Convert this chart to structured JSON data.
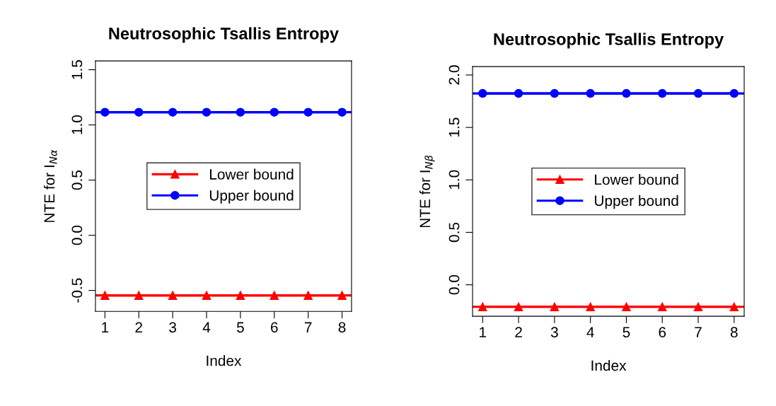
{
  "chart_data": [
    {
      "type": "line",
      "title": "Neutrosophic Tsallis Entropy",
      "xlabel": "Index",
      "ylabel": "NTE for I$_{Nα}$",
      "x": [
        1,
        2,
        3,
        4,
        5,
        6,
        7,
        8
      ],
      "xlim": [
        0.72,
        8.28
      ],
      "xticks": [
        1,
        2,
        3,
        4,
        5,
        6,
        7,
        8
      ],
      "ylim": [
        -0.69,
        1.58
      ],
      "yticks": [
        {
          "value": -0.5,
          "label": "-0.5"
        },
        {
          "value": 0,
          "label": "0.0"
        },
        {
          "value": 0.5,
          "label": "0.5"
        },
        {
          "value": 1,
          "label": "1.0"
        },
        {
          "value": 1.5,
          "label": "1.5"
        }
      ],
      "series": [
        {
          "name": "Lower bound",
          "color": "#ff0000",
          "marker": "triangle",
          "values": [
            -0.545,
            -0.545,
            -0.545,
            -0.545,
            -0.545,
            -0.545,
            -0.545,
            -0.545
          ]
        },
        {
          "name": "Upper bound",
          "color": "#0000ff",
          "marker": "circle",
          "values": [
            1.115,
            1.115,
            1.115,
            1.115,
            1.115,
            1.115,
            1.115,
            1.115
          ]
        }
      ],
      "ref_lines": [
        {
          "axis": "y",
          "value": -0.545,
          "color": "#ff0000"
        },
        {
          "axis": "y",
          "value": 1.115,
          "color": "#0000ff"
        }
      ],
      "legend": "center",
      "grid": false,
      "line_style": "solid"
    },
    {
      "type": "line",
      "title": "Neutrosophic Tsallis Entropy",
      "xlabel": "Index",
      "ylabel": "NTE for I$_{Nβ}$",
      "x": [
        1,
        2,
        3,
        4,
        5,
        6,
        7,
        8
      ],
      "xlim": [
        0.72,
        8.28
      ],
      "xticks": [
        1,
        2,
        3,
        4,
        5,
        6,
        7,
        8
      ],
      "ylim": [
        -0.3,
        2.08
      ],
      "yticks": [
        {
          "value": 0,
          "label": "0.0"
        },
        {
          "value": 0.5,
          "label": "0.5"
        },
        {
          "value": 1,
          "label": "1.0"
        },
        {
          "value": 1.5,
          "label": "1.5"
        },
        {
          "value": 2,
          "label": "2.0"
        }
      ],
      "series": [
        {
          "name": "Lower bound",
          "color": "#ff0000",
          "marker": "triangle",
          "values": [
            -0.21,
            -0.21,
            -0.21,
            -0.21,
            -0.21,
            -0.21,
            -0.21,
            -0.21
          ]
        },
        {
          "name": "Upper bound",
          "color": "#0000ff",
          "marker": "circle",
          "values": [
            1.824,
            1.824,
            1.824,
            1.824,
            1.824,
            1.824,
            1.824,
            1.824
          ]
        }
      ],
      "ref_lines": [
        {
          "axis": "y",
          "value": -0.21,
          "color": "#ff0000"
        },
        {
          "axis": "y",
          "value": 1.824,
          "color": "#0000ff"
        }
      ],
      "legend": "center",
      "grid": false,
      "line_style": "solid"
    }
  ]
}
